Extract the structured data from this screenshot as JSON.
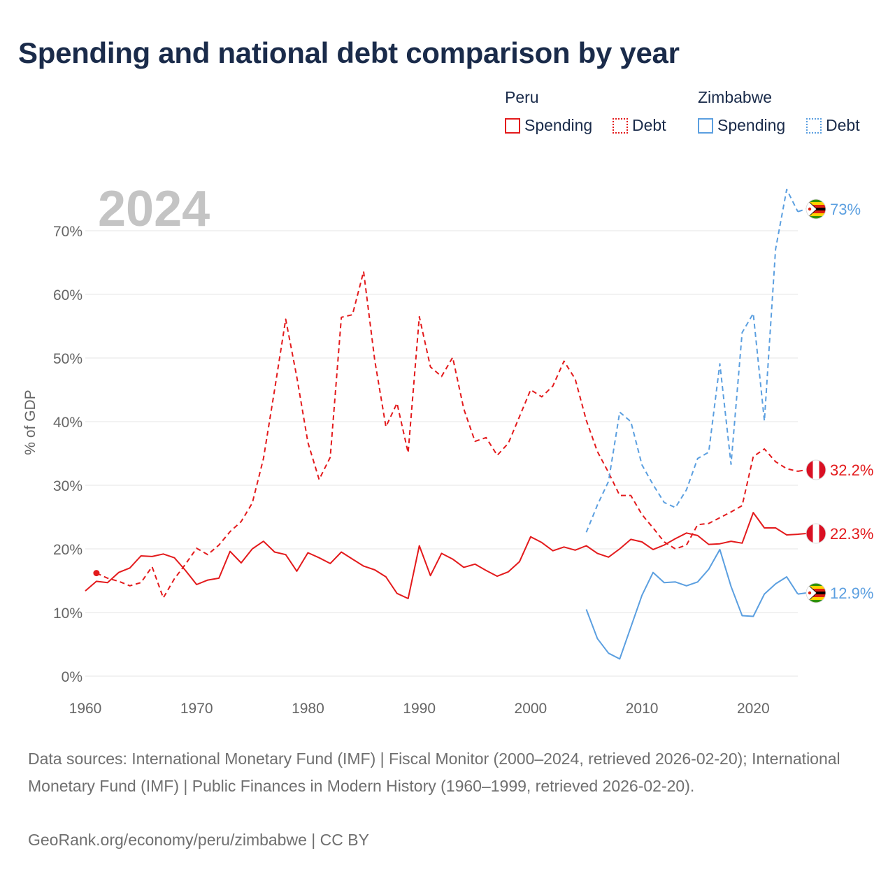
{
  "title": "Spending and national debt comparison by year",
  "year_watermark": "2024",
  "legend": {
    "groups": [
      {
        "country": "Peru",
        "color": "#e31a1c",
        "items": [
          {
            "label": "Spending",
            "style": "solid"
          },
          {
            "label": "Debt",
            "style": "dotted"
          }
        ]
      },
      {
        "country": "Zimbabwe",
        "color": "#5b9fe0",
        "items": [
          {
            "label": "Spending",
            "style": "solid"
          },
          {
            "label": "Debt",
            "style": "dotted"
          }
        ]
      }
    ]
  },
  "footer": {
    "source_line": "Data sources: International Monetary Fund (IMF) | Fiscal Monitor (2000–2024, retrieved 2026-02-20); International Monetary Fund (IMF) | Public Finances in Modern History (1960–1999, retrieved 2026-02-20).",
    "credit": "GeoRank.org/economy/peru/zimbabwe | CC BY"
  },
  "chart_data": {
    "type": "line",
    "title": "Spending and national debt comparison by year",
    "xlabel": "",
    "ylabel": "% of GDP",
    "xlim": [
      1960,
      2024
    ],
    "ylim": [
      0,
      75
    ],
    "grid": true,
    "x_ticks": [
      1960,
      1970,
      1980,
      1990,
      2000,
      2010,
      2020
    ],
    "x_tick_labels": [
      "1960",
      "1970",
      "1980",
      "1990",
      "2000",
      "2010",
      "2020"
    ],
    "y_ticks": [
      0,
      10,
      20,
      30,
      40,
      50,
      60,
      70
    ],
    "y_tick_labels": [
      "0%",
      "10%",
      "20%",
      "30%",
      "40%",
      "50%",
      "60%",
      "70%"
    ],
    "series": [
      {
        "name": "Peru Spending",
        "country": "Peru",
        "metric": "Spending",
        "color": "#e31a1c",
        "dash": "solid",
        "end_label": "22.3%",
        "x": [
          1960,
          1961,
          1962,
          1963,
          1964,
          1965,
          1966,
          1967,
          1968,
          1969,
          1970,
          1971,
          1972,
          1973,
          1974,
          1975,
          1976,
          1977,
          1978,
          1979,
          1980,
          1981,
          1982,
          1983,
          1984,
          1985,
          1986,
          1987,
          1988,
          1989,
          1990,
          1991,
          1992,
          1993,
          1994,
          1995,
          1996,
          1997,
          1998,
          1999,
          2000,
          2001,
          2002,
          2003,
          2004,
          2005,
          2006,
          2007,
          2008,
          2009,
          2010,
          2011,
          2012,
          2013,
          2014,
          2015,
          2016,
          2017,
          2018,
          2019,
          2020,
          2021,
          2022,
          2023,
          2024
        ],
        "values": [
          13.4,
          14.9,
          14.7,
          16.3,
          17.0,
          18.9,
          18.8,
          19.2,
          18.6,
          16.6,
          14.4,
          15.1,
          15.4,
          19.6,
          17.8,
          20.0,
          21.2,
          19.5,
          19.1,
          16.5,
          19.4,
          18.6,
          17.7,
          19.5,
          18.4,
          17.3,
          16.7,
          15.6,
          13.0,
          12.2,
          20.5,
          15.8,
          19.3,
          18.4,
          17.1,
          17.6,
          16.6,
          15.7,
          16.4,
          18.0,
          21.9,
          21.0,
          19.7,
          20.3,
          19.8,
          20.5,
          19.3,
          18.7,
          20.0,
          21.5,
          21.1,
          19.9,
          20.6,
          21.6,
          22.5,
          22.1,
          20.7,
          20.8,
          21.2,
          20.9,
          25.7,
          23.3,
          23.3,
          22.2,
          22.3
        ]
      },
      {
        "name": "Peru Debt",
        "country": "Peru",
        "metric": "Debt",
        "color": "#e31a1c",
        "dash": "dashed",
        "end_label": "32.2%",
        "x": [
          1961,
          1962,
          1963,
          1964,
          1965,
          1966,
          1967,
          1968,
          1969,
          1970,
          1971,
          1972,
          1973,
          1974,
          1975,
          1976,
          1977,
          1978,
          1979,
          1980,
          1981,
          1982,
          1983,
          1984,
          1985,
          1986,
          1987,
          1988,
          1989,
          1990,
          1991,
          1992,
          1993,
          1994,
          1995,
          1996,
          1997,
          1998,
          1999,
          2000,
          2001,
          2002,
          2003,
          2004,
          2005,
          2006,
          2007,
          2008,
          2009,
          2010,
          2011,
          2012,
          2013,
          2014,
          2015,
          2016,
          2017,
          2018,
          2019,
          2020,
          2021,
          2022,
          2023,
          2024
        ],
        "values": [
          16.2,
          15.4,
          14.9,
          14.2,
          14.7,
          17.2,
          12.3,
          15.3,
          17.6,
          20.1,
          19.1,
          20.6,
          22.7,
          24.3,
          27.2,
          34.2,
          45.0,
          56.1,
          47.0,
          36.7,
          30.9,
          34.4,
          56.4,
          56.8,
          63.6,
          49.6,
          39.2,
          42.9,
          35.1,
          56.5,
          48.6,
          47.1,
          50.1,
          42.0,
          36.9,
          37.5,
          34.7,
          36.6,
          40.8,
          45.0,
          43.9,
          45.6,
          49.5,
          46.7,
          40.2,
          35.3,
          32.0,
          28.4,
          28.4,
          25.4,
          23.3,
          21.1,
          20.0,
          20.6,
          23.8,
          24.0,
          24.9,
          25.8,
          26.8,
          34.5,
          35.7,
          33.7,
          32.6,
          32.2
        ]
      },
      {
        "name": "Zimbabwe Spending",
        "country": "Zimbabwe",
        "metric": "Spending",
        "color": "#5b9fe0",
        "dash": "solid",
        "end_label": "12.9%",
        "x": [
          2005,
          2006,
          2007,
          2008,
          2009,
          2010,
          2011,
          2012,
          2013,
          2014,
          2015,
          2016,
          2017,
          2018,
          2019,
          2020,
          2021,
          2022,
          2023,
          2024
        ],
        "values": [
          10.5,
          5.9,
          3.6,
          2.7,
          7.7,
          12.7,
          16.3,
          14.7,
          14.8,
          14.2,
          14.8,
          16.8,
          19.9,
          14.1,
          9.5,
          9.4,
          12.9,
          14.5,
          15.6,
          12.9
        ]
      },
      {
        "name": "Zimbabwe Debt",
        "country": "Zimbabwe",
        "metric": "Debt",
        "color": "#5b9fe0",
        "dash": "dashed",
        "end_label": "73%",
        "x": [
          2005,
          2006,
          2007,
          2008,
          2009,
          2010,
          2011,
          2012,
          2013,
          2014,
          2015,
          2016,
          2017,
          2018,
          2019,
          2020,
          2021,
          2022,
          2023,
          2024
        ],
        "values": [
          22.6,
          26.9,
          30.6,
          41.5,
          40.0,
          33.2,
          30.1,
          27.3,
          26.5,
          29.3,
          34.2,
          35.2,
          49.1,
          33.3,
          54.0,
          57.0,
          40.1,
          67.1,
          76.5,
          73.0
        ]
      }
    ]
  }
}
